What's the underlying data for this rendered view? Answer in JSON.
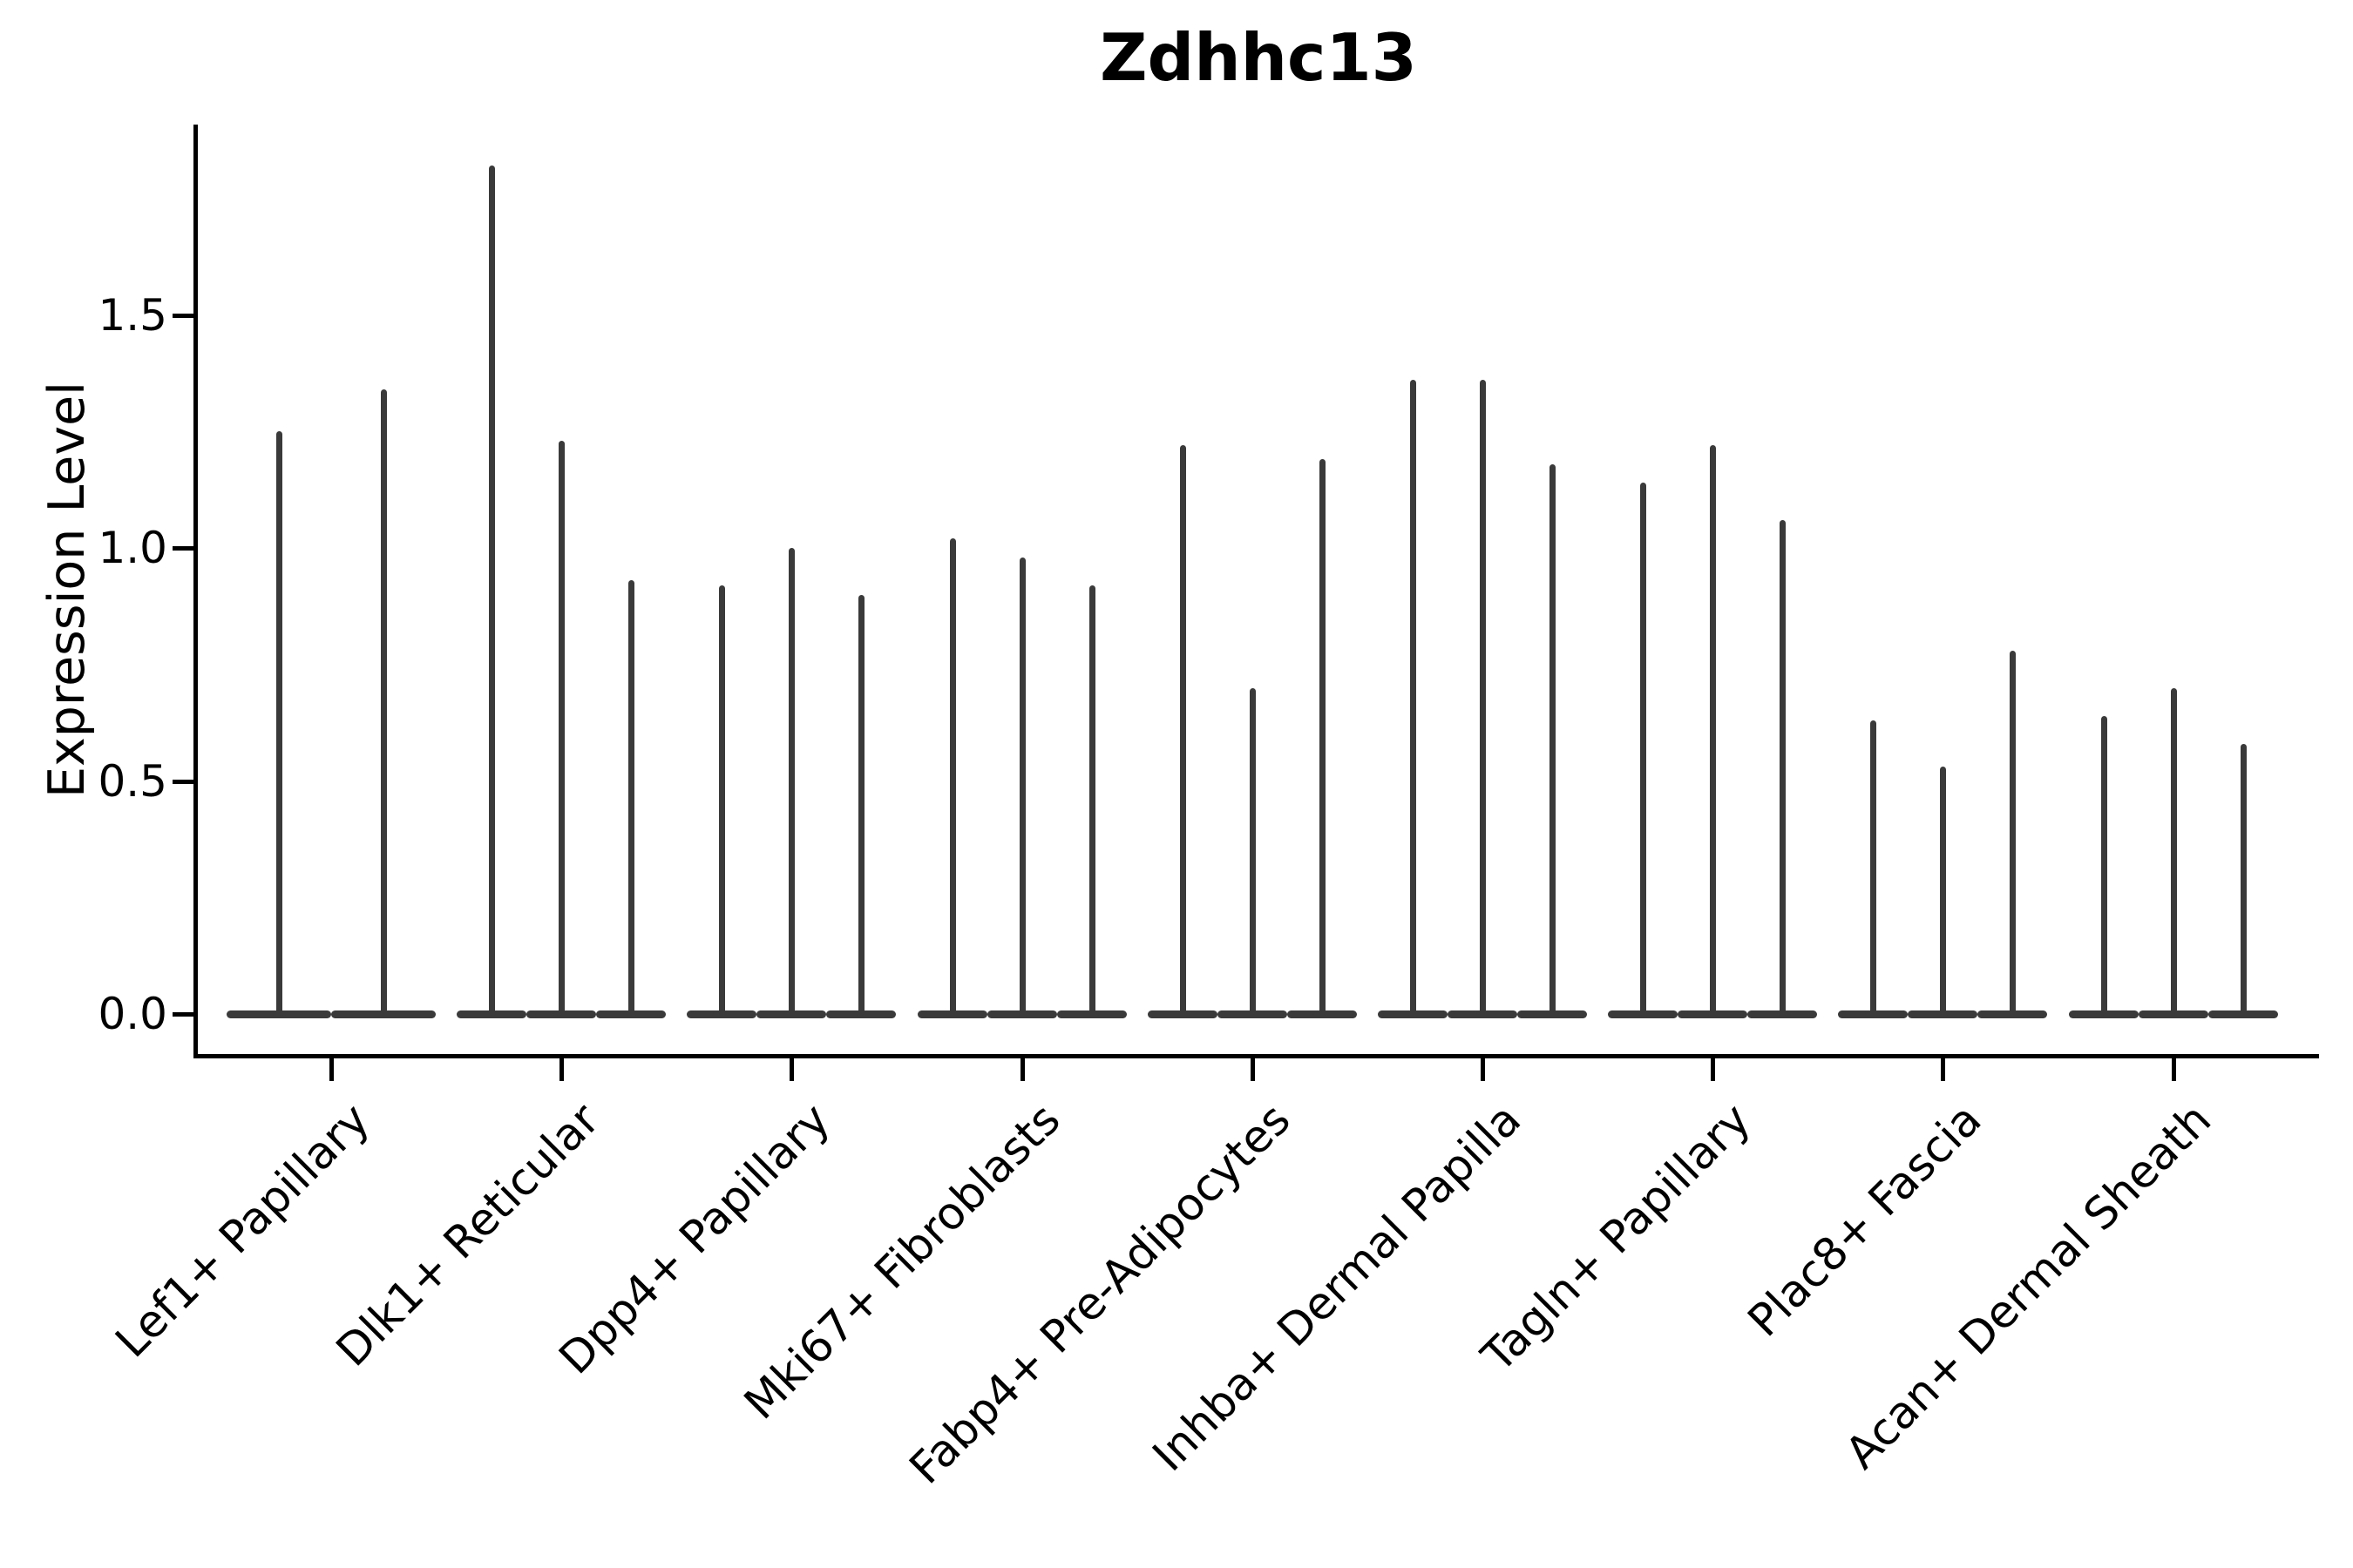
{
  "chart_data": {
    "type": "violin",
    "title": "Zdhhc13",
    "ylabel": "Expression Level",
    "xlabel": "",
    "yticks": [
      "0.0",
      "0.5",
      "1.0",
      "1.5"
    ],
    "ytick_values": [
      0.0,
      0.5,
      1.0,
      1.5
    ],
    "ylim": [
      -0.09,
      1.91
    ],
    "grid": false,
    "legend": false,
    "violin_color": "#3a3a3a",
    "baseline_value": 0.0,
    "groups": [
      {
        "label": "Lef1+ Papillary",
        "violin_maxima": [
          1.25,
          1.34
        ]
      },
      {
        "label": "Dlk1+ Reticular",
        "violin_maxima": [
          1.82,
          1.23,
          0.93
        ]
      },
      {
        "label": "Dpp4+ Papillary",
        "violin_maxima": [
          0.92,
          1.0,
          0.9
        ]
      },
      {
        "label": "Mki67+ Fibroblasts",
        "violin_maxima": [
          1.02,
          0.98,
          0.92
        ]
      },
      {
        "label": "Fabp4+ Pre-Adipocytes",
        "violin_maxima": [
          1.22,
          0.7,
          1.19
        ]
      },
      {
        "label": "Inhba+ Dermal Papilla",
        "violin_maxima": [
          1.36,
          1.36,
          1.18
        ]
      },
      {
        "label": "Tagln+ Papillary",
        "violin_maxima": [
          1.14,
          1.22,
          1.06
        ]
      },
      {
        "label": "Plac8+ Fascia",
        "violin_maxima": [
          0.63,
          0.53,
          0.78
        ]
      },
      {
        "label": "Acan+ Dermal Sheath",
        "violin_maxima": [
          0.64,
          0.7,
          0.58
        ]
      }
    ]
  }
}
